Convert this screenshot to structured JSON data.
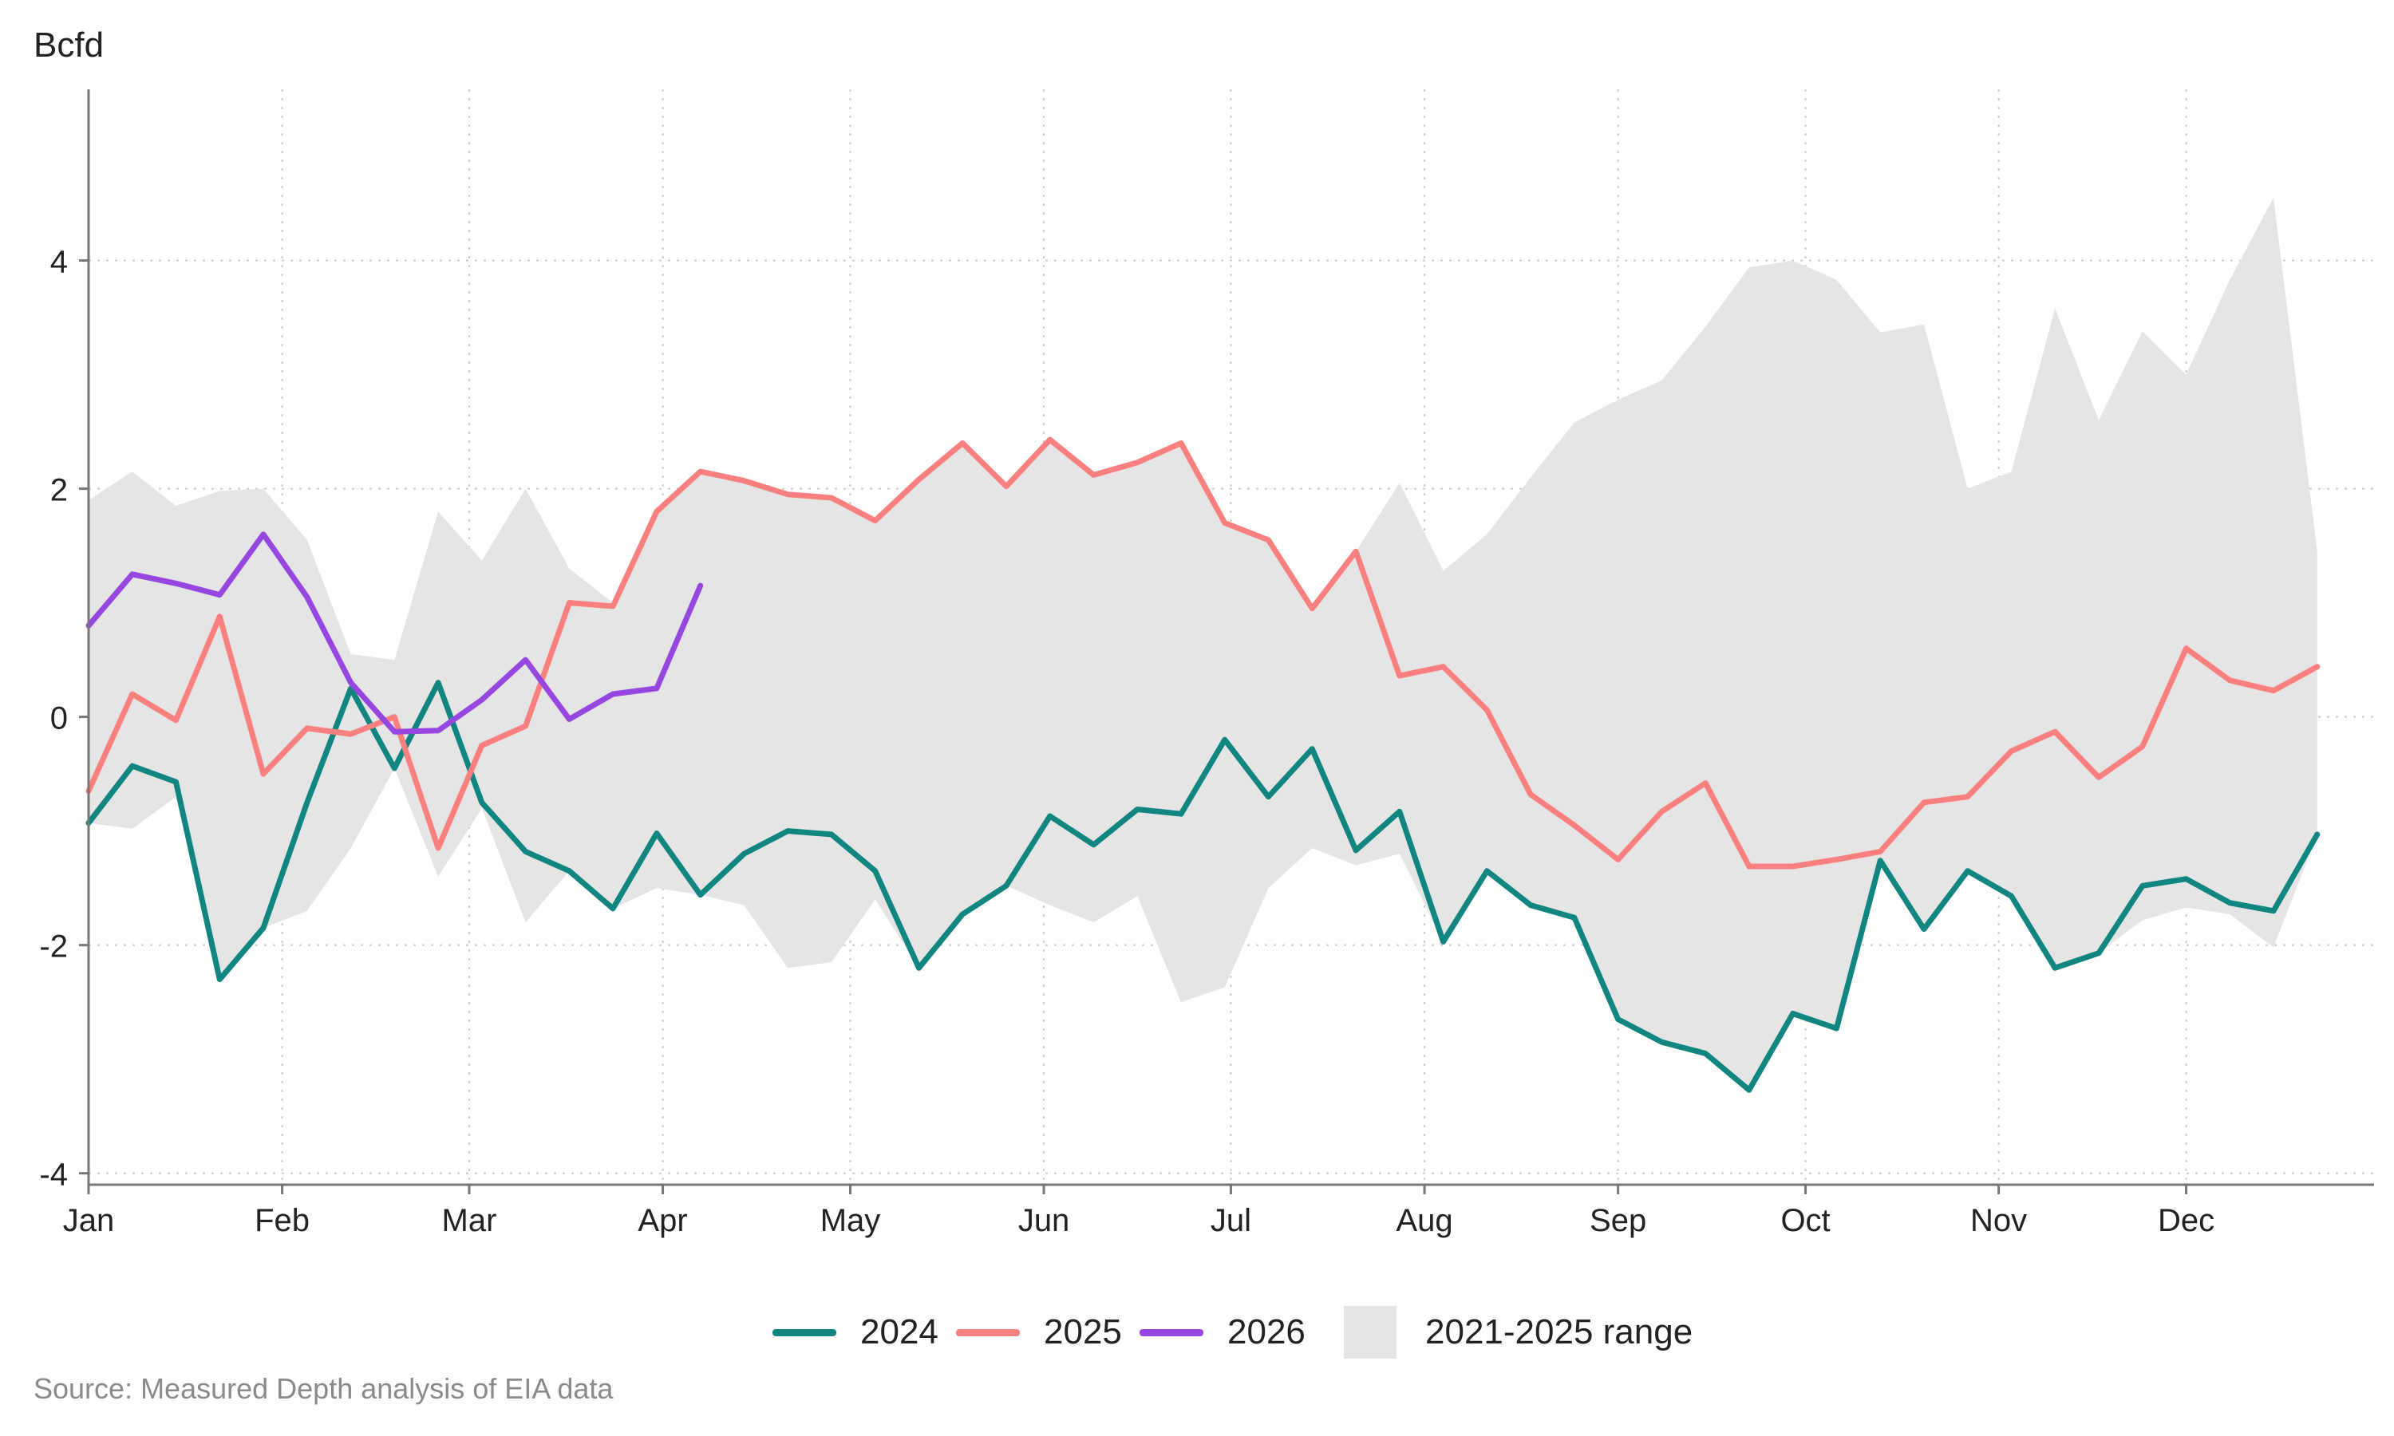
{
  "chart_data": {
    "type": "line",
    "unit_label": "Bcfd",
    "source": "Source: Measured Depth analysis of EIA data",
    "ylim": [
      -4.1,
      5.5
    ],
    "yticks": [
      -4,
      -2,
      0,
      2,
      4
    ],
    "ytick_labels": [
      "-4",
      "-2",
      "0",
      "2",
      "4"
    ],
    "xlim": [
      1,
      53.3
    ],
    "month_ticks": [
      {
        "label": "Jan",
        "week": 1
      },
      {
        "label": "Feb",
        "week": 5.43
      },
      {
        "label": "Mar",
        "week": 9.71
      },
      {
        "label": "Apr",
        "week": 14.14
      },
      {
        "label": "May",
        "week": 18.43
      },
      {
        "label": "Jun",
        "week": 22.86
      },
      {
        "label": "Jul",
        "week": 27.14
      },
      {
        "label": "Aug",
        "week": 31.57
      },
      {
        "label": "Sep",
        "week": 36
      },
      {
        "label": "Oct",
        "week": 40.29
      },
      {
        "label": "Nov",
        "week": 44.71
      },
      {
        "label": "Dec",
        "week": 49
      }
    ],
    "grid": true,
    "series": [
      {
        "name": "2024",
        "color": "#11857f",
        "x": [
          1,
          2,
          3,
          4,
          5,
          6,
          7,
          8,
          9,
          10,
          11,
          12,
          13,
          14,
          15,
          16,
          17,
          18,
          19,
          20,
          21,
          22,
          23,
          24,
          25,
          26,
          27,
          28,
          29,
          30,
          31,
          32,
          33,
          34,
          35,
          36,
          37,
          38,
          39,
          40,
          41,
          42,
          43,
          44,
          45,
          46,
          47,
          48,
          49,
          50,
          51,
          52
        ],
        "values": [
          -0.93,
          -0.43,
          -0.57,
          -2.3,
          -1.85,
          -0.75,
          0.25,
          -0.45,
          0.3,
          -0.75,
          -1.18,
          -1.35,
          -1.68,
          -1.02,
          -1.56,
          -1.2,
          -1.0,
          -1.03,
          -1.35,
          -2.2,
          -1.73,
          -1.48,
          -0.87,
          -1.12,
          -0.81,
          -0.85,
          -0.2,
          -0.7,
          -0.28,
          -1.17,
          -0.83,
          -1.97,
          -1.35,
          -1.65,
          -1.76,
          -2.65,
          -2.85,
          -2.95,
          -3.27,
          -2.6,
          -2.73,
          -1.26,
          -1.86,
          -1.35,
          -1.57,
          -2.2,
          -2.07,
          -1.48,
          -1.42,
          -1.63,
          -1.7,
          -1.03
        ]
      },
      {
        "name": "2025",
        "color": "#fa8080",
        "x": [
          1,
          2,
          3,
          4,
          5,
          6,
          7,
          8,
          9,
          10,
          11,
          12,
          13,
          14,
          15,
          16,
          17,
          18,
          19,
          20,
          21,
          22,
          23,
          24,
          25,
          26,
          27,
          28,
          29,
          30,
          31,
          32,
          33,
          34,
          35,
          36,
          37,
          38,
          39,
          40,
          41,
          42,
          43,
          44,
          45,
          46,
          47,
          48,
          49,
          50,
          51,
          52
        ],
        "values": [
          -0.65,
          0.2,
          -0.03,
          0.88,
          -0.5,
          -0.1,
          -0.15,
          0.0,
          -1.15,
          -0.25,
          -0.08,
          1.0,
          0.97,
          1.8,
          2.15,
          2.07,
          1.95,
          1.92,
          1.72,
          2.08,
          2.4,
          2.02,
          2.43,
          2.12,
          2.23,
          2.4,
          1.7,
          1.55,
          0.95,
          1.45,
          0.36,
          0.44,
          0.06,
          -0.68,
          -0.95,
          -1.25,
          -0.83,
          -0.58,
          -1.31,
          -1.31,
          -1.25,
          -1.18,
          -0.75,
          -0.7,
          -0.3,
          -0.13,
          -0.53,
          -0.26,
          0.6,
          0.32,
          0.23,
          0.44
        ]
      },
      {
        "name": "2026",
        "color": "#9647e0",
        "x": [
          1,
          2,
          3,
          4,
          5,
          6,
          7,
          8,
          9,
          10,
          11,
          12,
          13,
          14,
          15
        ],
        "values": [
          0.8,
          1.25,
          1.17,
          1.07,
          1.6,
          1.05,
          0.3,
          -0.13,
          -0.12,
          0.15,
          0.5,
          -0.02,
          0.2,
          0.25,
          1.15
        ]
      }
    ],
    "range": {
      "name": "2021-2025 range",
      "color": "#e5e5e5",
      "x": [
        1,
        2,
        3,
        4,
        5,
        6,
        7,
        8,
        9,
        10,
        11,
        12,
        13,
        14,
        15,
        16,
        17,
        18,
        19,
        20,
        21,
        22,
        23,
        24,
        25,
        26,
        27,
        28,
        29,
        30,
        31,
        32,
        33,
        34,
        35,
        36,
        37,
        38,
        39,
        40,
        41,
        42,
        43,
        44,
        45,
        46,
        47,
        48,
        49,
        50,
        51,
        52
      ],
      "high": [
        1.9,
        2.15,
        1.85,
        1.98,
        2.0,
        1.55,
        0.55,
        0.5,
        1.8,
        1.37,
        2.0,
        1.3,
        1.0,
        1.8,
        2.15,
        2.07,
        1.95,
        1.92,
        1.72,
        2.08,
        2.4,
        2.02,
        2.43,
        2.12,
        2.23,
        2.4,
        1.7,
        1.55,
        0.95,
        1.45,
        2.05,
        1.28,
        1.6,
        2.1,
        2.58,
        2.78,
        2.95,
        3.42,
        3.94,
        4.0,
        3.83,
        3.37,
        3.44,
        2.0,
        2.15,
        3.58,
        2.6,
        3.38,
        3.0,
        3.83,
        4.55,
        1.45
      ],
      "low": [
        -0.93,
        -0.98,
        -0.7,
        -2.3,
        -1.85,
        -1.7,
        -1.15,
        -0.45,
        -1.4,
        -0.8,
        -1.8,
        -1.35,
        -1.68,
        -1.5,
        -1.56,
        -1.65,
        -2.2,
        -2.15,
        -1.6,
        -2.2,
        -1.73,
        -1.48,
        -1.65,
        -1.8,
        -1.57,
        -2.5,
        -2.37,
        -1.5,
        -1.15,
        -1.3,
        -1.2,
        -1.97,
        -1.35,
        -1.65,
        -1.76,
        -2.65,
        -2.85,
        -2.95,
        -3.27,
        -2.6,
        -2.73,
        -1.26,
        -1.86,
        -1.35,
        -1.57,
        -2.2,
        -2.07,
        -1.78,
        -1.67,
        -1.73,
        -2.02,
        -1.03
      ]
    }
  }
}
